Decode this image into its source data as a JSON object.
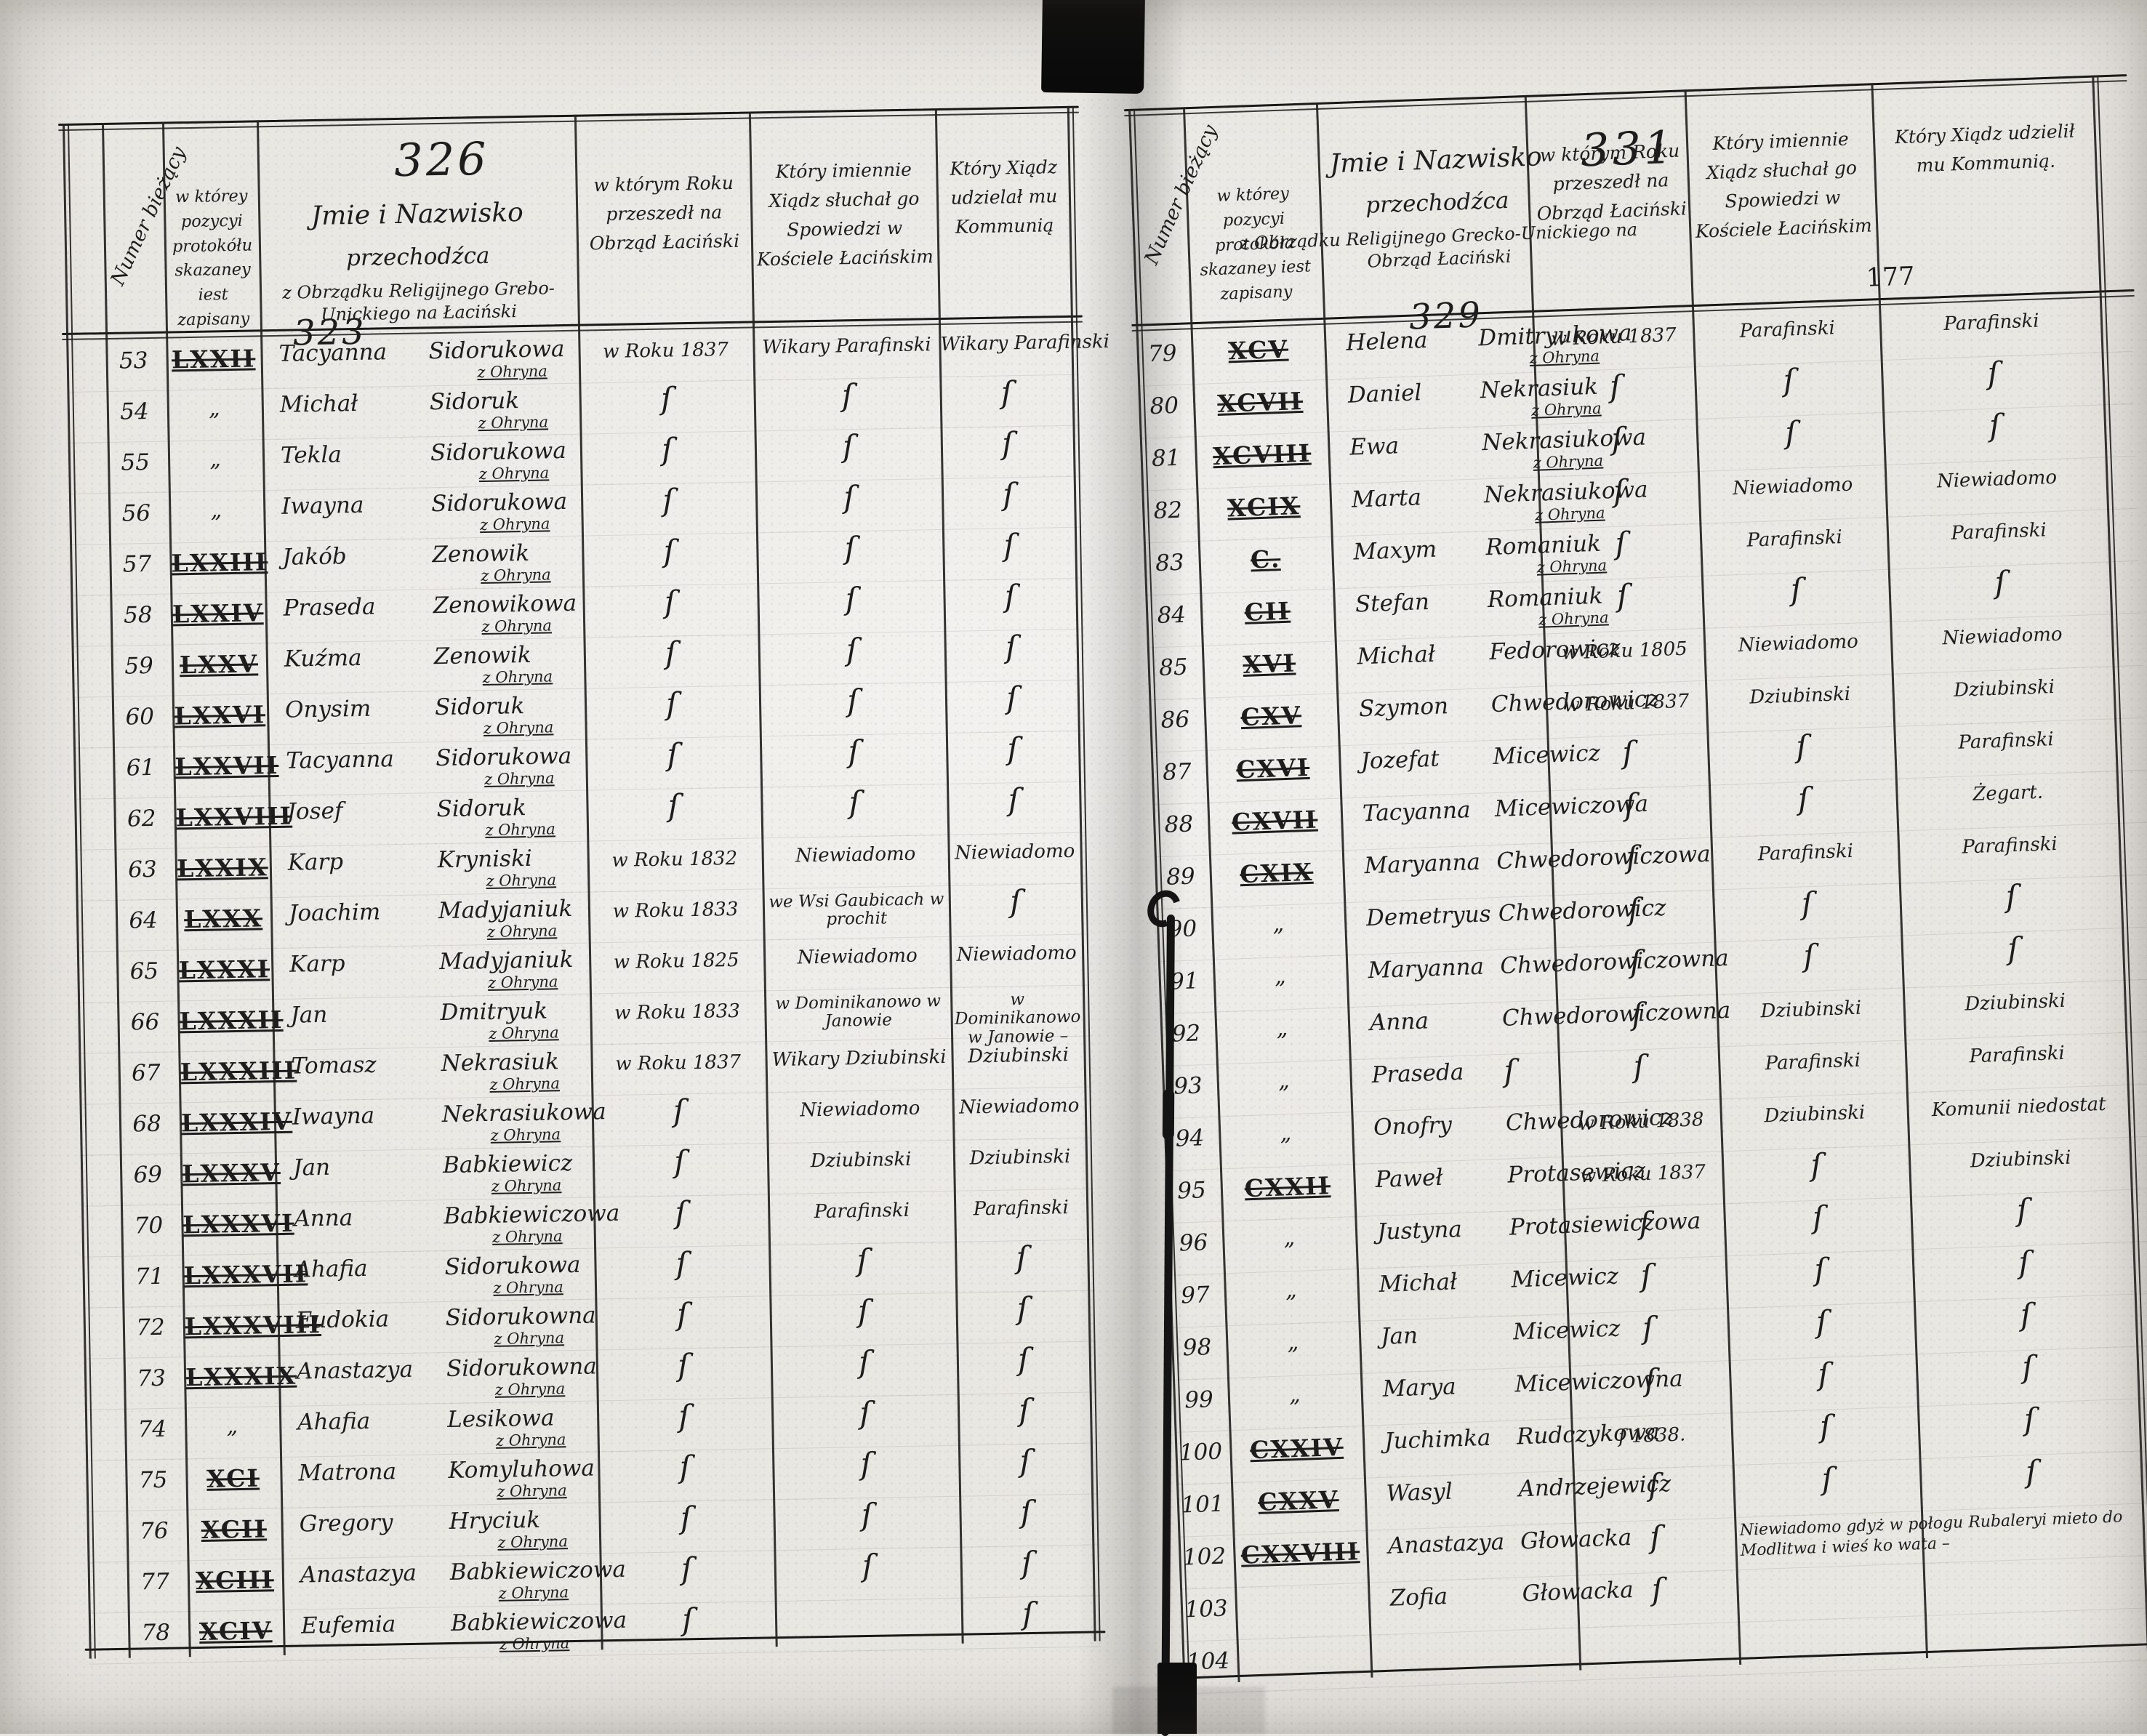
{
  "ink_color": "#1d1d1d",
  "paper_color": "#e9e7e2",
  "ditto_mark": "ſ",
  "left_page": {
    "page_number": "326",
    "inline_number": "323",
    "headers": {
      "number": "Numer bieżący",
      "position": "w którey pozycyi protokółu skazaney iest zapisany",
      "name_title": "Jmie i Nazwisko",
      "name_sub1": "przechodźca",
      "name_sub2": "z Obrządku Religijnego Grebo-Unickiego na Łaciński",
      "year": "w którym Roku przeszedł na Obrząd Łaciński",
      "confessor": "Który imiennie Xiądz słuchał go Spowiedzi w Kościele Łacińskim",
      "communion": "Który Xiądz udzielał mu Kommunią"
    },
    "rows": [
      {
        "num": "53",
        "pos": "LXXII",
        "given": "Tacyanna",
        "surname": "Sidorukowa",
        "village": "z Ohryna",
        "year": "w Roku 1837",
        "confessor": "Wikary Parafinski",
        "communion": "Wikary Parafinski"
      },
      {
        "num": "54",
        "pos": "„",
        "given": "Michał",
        "surname": "Sidoruk",
        "village": "z Ohryna",
        "year": "ſ",
        "confessor": "ſ",
        "communion": "ſ"
      },
      {
        "num": "55",
        "pos": "„",
        "given": "Tekla",
        "surname": "Sidorukowa",
        "village": "z Ohryna",
        "year": "ſ",
        "confessor": "ſ",
        "communion": "ſ"
      },
      {
        "num": "56",
        "pos": "„",
        "given": "Iwayna",
        "surname": "Sidorukowa",
        "village": "z Ohryna",
        "year": "ſ",
        "confessor": "ſ",
        "communion": "ſ"
      },
      {
        "num": "57",
        "pos": "LXXIII",
        "given": "Jakób",
        "surname": "Zenowik",
        "village": "z Ohryna",
        "year": "ſ",
        "confessor": "ſ",
        "communion": "ſ"
      },
      {
        "num": "58",
        "pos": "LXXIV",
        "given": "Praseda",
        "surname": "Zenowikowa",
        "village": "z Ohryna",
        "year": "ſ",
        "confessor": "ſ",
        "communion": "ſ"
      },
      {
        "num": "59",
        "pos": "LXXV",
        "given": "Kuźma",
        "surname": "Zenowik",
        "village": "z Ohryna",
        "year": "ſ",
        "confessor": "ſ",
        "communion": "ſ"
      },
      {
        "num": "60",
        "pos": "LXXVI",
        "given": "Onysim",
        "surname": "Sidoruk",
        "village": "z Ohryna",
        "year": "ſ",
        "confessor": "ſ",
        "communion": "ſ"
      },
      {
        "num": "61",
        "pos": "LXXVII",
        "given": "Tacyanna",
        "surname": "Sidorukowa",
        "village": "z Ohryna",
        "year": "ſ",
        "confessor": "ſ",
        "communion": "ſ"
      },
      {
        "num": "62",
        "pos": "LXXVIII",
        "given": "Josef",
        "surname": "Sidoruk",
        "village": "z Ohryna",
        "year": "ſ",
        "confessor": "ſ",
        "communion": "ſ"
      },
      {
        "num": "63",
        "pos": "LXXIX",
        "given": "Karp",
        "surname": "Kryniski",
        "village": "z Ohryna",
        "year": "w Roku 1832",
        "confessor": "Niewiadomo",
        "communion": "Niewiadomo"
      },
      {
        "num": "64",
        "pos": "LXXX",
        "given": "Joachim",
        "surname": "Madyjaniuk",
        "village": "z Ohryna",
        "year": "w Roku 1833",
        "confessor": "we Wsi Gaubicach w prochit",
        "communion": "ſ"
      },
      {
        "num": "65",
        "pos": "LXXXI",
        "given": "Karp",
        "surname": "Madyjaniuk",
        "village": "z Ohryna",
        "year": "w Roku 1825",
        "confessor": "Niewiadomo",
        "communion": "Niewiadomo"
      },
      {
        "num": "66",
        "pos": "LXXXII",
        "given": "Jan",
        "surname": "Dmitryuk",
        "village": "z Ohryna",
        "year": "w Roku 1833",
        "confessor": "w Dominikanowo w Janowie",
        "communion": "w Dominikanowo w Janowie –"
      },
      {
        "num": "67",
        "pos": "LXXXIII",
        "given": "Tomasz",
        "surname": "Nekrasiuk",
        "village": "z Ohryna",
        "year": "w Roku 1837",
        "confessor": "Wikary Dziubinski",
        "communion": "Dziubinski"
      },
      {
        "num": "68",
        "pos": "LXXXIV",
        "given": "Iwayna",
        "surname": "Nekrasiukowa",
        "village": "z Ohryna",
        "year": "ſ",
        "confessor": "Niewiadomo",
        "communion": "Niewiadomo"
      },
      {
        "num": "69",
        "pos": "LXXXV",
        "given": "Jan",
        "surname": "Babkiewicz",
        "village": "z Ohryna",
        "year": "ſ",
        "confessor": "Dziubinski",
        "communion": "Dziubinski"
      },
      {
        "num": "70",
        "pos": "LXXXVI",
        "given": "Anna",
        "surname": "Babkiewiczowa",
        "village": "z Ohryna",
        "year": "ſ",
        "confessor": "Parafinski",
        "communion": "Parafinski"
      },
      {
        "num": "71",
        "pos": "LXXXVII",
        "given": "Ahafia",
        "surname": "Sidorukowa",
        "village": "z Ohryna",
        "year": "ſ",
        "confessor": "ſ",
        "communion": "ſ"
      },
      {
        "num": "72",
        "pos": "LXXXVIII",
        "given": "Eudokia",
        "surname": "Sidorukowna",
        "village": "z Ohryna",
        "year": "ſ",
        "confessor": "ſ",
        "communion": "ſ"
      },
      {
        "num": "73",
        "pos": "LXXXIX",
        "given": "Anastazya",
        "surname": "Sidorukowna",
        "village": "z Ohryna",
        "year": "ſ",
        "confessor": "ſ",
        "communion": "ſ"
      },
      {
        "num": "74",
        "pos": "„",
        "given": "Ahafia",
        "surname": "Lesikowa",
        "village": "z Ohryna",
        "year": "ſ",
        "confessor": "ſ",
        "communion": "ſ"
      },
      {
        "num": "75",
        "pos": "XCI",
        "given": "Matrona",
        "surname": "Komyluhowa",
        "village": "z Ohryna",
        "year": "ſ",
        "confessor": "ſ",
        "communion": "ſ"
      },
      {
        "num": "76",
        "pos": "XCII",
        "given": "Gregory",
        "surname": "Hryciuk",
        "village": "z Ohryna",
        "year": "ſ",
        "confessor": "ſ",
        "communion": "ſ"
      },
      {
        "num": "77",
        "pos": "XCIII",
        "given": "Anastazya",
        "surname": "Babkiewiczowa",
        "village": "z Ohryna",
        "year": "ſ",
        "confessor": "ſ",
        "communion": "ſ"
      },
      {
        "num": "78",
        "pos": "XCIV",
        "given": "Eufemia",
        "surname": "Babkiewiczowa",
        "village": "z Ohryna",
        "year": "ſ",
        "confessor": "",
        "communion": "ſ"
      }
    ]
  },
  "right_page": {
    "page_number": "331",
    "inline_number": "329",
    "corner_number": "177",
    "headers": {
      "number": "Numer bieżący",
      "position": "w którey pozycyi protokóła skazaney iest zapisany",
      "name_title": "Jmie i Nazwisko",
      "name_sub1": "przechodźca",
      "name_sub2": "z Obrządku Religijnego Grecko-Unickiego na Obrząd Łaciński",
      "year": "w którym Roku przeszedł na Obrząd Łaciński",
      "confessor": "Który imiennie Xiądz słuchał go Spowiedzi w Kościele Łacińskim",
      "communion": "Który Xiądz udzielił mu Kommunią."
    },
    "rows": [
      {
        "num": "79",
        "pos": "XCV",
        "given": "Helena",
        "surname": "Dmitryukowa",
        "village": "z Ohryna",
        "year": "w Roku 1837",
        "confessor": "Parafinski",
        "communion": "Parafinski"
      },
      {
        "num": "80",
        "pos": "XCVII",
        "given": "Daniel",
        "surname": "Nekrasiuk",
        "village": "z Ohryna",
        "year": "ſ",
        "confessor": "ſ",
        "communion": "ſ"
      },
      {
        "num": "81",
        "pos": "XCVIII",
        "given": "Ewa",
        "surname": "Nekrasiukowa",
        "village": "z Ohryna",
        "year": "ſ",
        "confessor": "ſ",
        "communion": "ſ"
      },
      {
        "num": "82",
        "pos": "XCIX",
        "given": "Marta",
        "surname": "Nekrasiukowa",
        "village": "z Ohryna",
        "year": "ſ",
        "confessor": "Niewiadomo",
        "communion": "Niewiadomo"
      },
      {
        "num": "83",
        "pos": "C.",
        "given": "Maxym",
        "surname": "Romaniuk",
        "village": "z Ohryna",
        "year": "ſ",
        "confessor": "Parafinski",
        "communion": "Parafinski"
      },
      {
        "num": "84",
        "pos": "CII",
        "given": "Stefan",
        "surname": "Romaniuk",
        "village": "z Ohryna",
        "year": "ſ",
        "confessor": "ſ",
        "communion": "ſ"
      },
      {
        "num": "85",
        "pos": "XVI",
        "given": "Michał",
        "surname": "Fedorowicz",
        "village": "",
        "year": "w Roku 1805",
        "confessor": "Niewiadomo",
        "communion": "Niewiadomo"
      },
      {
        "num": "86",
        "pos": "CXV",
        "given": "Szymon",
        "surname": "Chwedorowicz",
        "village": "",
        "year": "w Roku 1837",
        "confessor": "Dziubinski",
        "communion": "Dziubinski"
      },
      {
        "num": "87",
        "pos": "CXVI",
        "given": "Jozefat",
        "surname": "Micewicz",
        "village": "",
        "year": "ſ",
        "confessor": "ſ",
        "communion": "Parafinski"
      },
      {
        "num": "88",
        "pos": "CXVII",
        "given": "Tacyanna",
        "surname": "Micewiczowa",
        "village": "",
        "year": "ſ",
        "confessor": "ſ",
        "communion": "Żegart."
      },
      {
        "num": "89",
        "pos": "CXIX",
        "given": "Maryanna",
        "surname": "Chwedorowiczowa",
        "village": "",
        "year": "ſ",
        "confessor": "Parafinski",
        "communion": "Parafinski"
      },
      {
        "num": "90",
        "pos": "„",
        "given": "Demetryus",
        "surname": "Chwedorowicz",
        "village": "",
        "year": "ſ",
        "confessor": "ſ",
        "communion": "ſ"
      },
      {
        "num": "91",
        "pos": "„",
        "given": "Maryanna",
        "surname": "Chwedorowiczowna",
        "village": "",
        "year": "ſ",
        "confessor": "ſ",
        "communion": "ſ"
      },
      {
        "num": "92",
        "pos": "„",
        "given": "Anna",
        "surname": "Chwedorowiczowna",
        "village": "",
        "year": "ſ",
        "confessor": "Dziubinski",
        "communion": "Dziubinski"
      },
      {
        "num": "93",
        "pos": "„",
        "given": "Praseda",
        "surname": "ſ",
        "village": "",
        "year": "ſ",
        "confessor": "Parafinski",
        "communion": "Parafinski"
      },
      {
        "num": "94",
        "pos": "„",
        "given": "Onofry",
        "surname": "Chwedorowicz",
        "village": "",
        "year": "w Roku 1838",
        "confessor": "Dziubinski",
        "communion": "Komunii niedostat"
      },
      {
        "num": "95",
        "pos": "CXXII",
        "given": "Paweł",
        "surname": "Protasewicz",
        "village": "",
        "year": "w Roku 1837",
        "confessor": "ſ",
        "communion": "Dziubinski"
      },
      {
        "num": "96",
        "pos": "„",
        "given": "Justyna",
        "surname": "Protasiewiczowa",
        "village": "",
        "year": "ſ",
        "confessor": "ſ",
        "communion": "ſ"
      },
      {
        "num": "97",
        "pos": "„",
        "given": "Michał",
        "surname": "Micewicz",
        "village": "",
        "year": "ſ",
        "confessor": "ſ",
        "communion": "ſ"
      },
      {
        "num": "98",
        "pos": "„",
        "given": "Jan",
        "surname": "Micewicz",
        "village": "",
        "year": "ſ",
        "confessor": "ſ",
        "communion": "ſ"
      },
      {
        "num": "99",
        "pos": "„",
        "given": "Marya",
        "surname": "Micewiczowna",
        "village": "",
        "year": "ſ",
        "confessor": "ſ",
        "communion": "ſ"
      },
      {
        "num": "100",
        "pos": "CXXIV",
        "given": "Juchimka",
        "surname": "Rudczykowa",
        "village": "",
        "year": "ſ 1838.",
        "confessor": "ſ",
        "communion": "ſ"
      },
      {
        "num": "101",
        "pos": "CXXV",
        "given": "Wasyl",
        "surname": "Andrzejewicz",
        "village": "",
        "year": "ſ",
        "confessor": "ſ",
        "communion": "ſ"
      },
      {
        "num": "102",
        "pos": "CXXVIII",
        "given": "Anastazya",
        "surname": "Głowacka",
        "village": "",
        "year": "ſ",
        "confessor": "",
        "communion": "",
        "note": "Niewiadomo gdyż w połogu Rubaleryi mieto do Modlitwa i wieś ko wata –"
      },
      {
        "num": "103",
        "pos": "",
        "given": "Zofia",
        "surname": "Głowacka",
        "village": "",
        "year": "ſ",
        "confessor": "",
        "communion": ""
      },
      {
        "num": "104",
        "pos": "",
        "given": "",
        "surname": "",
        "village": "",
        "year": "",
        "confessor": "",
        "communion": ""
      }
    ]
  }
}
